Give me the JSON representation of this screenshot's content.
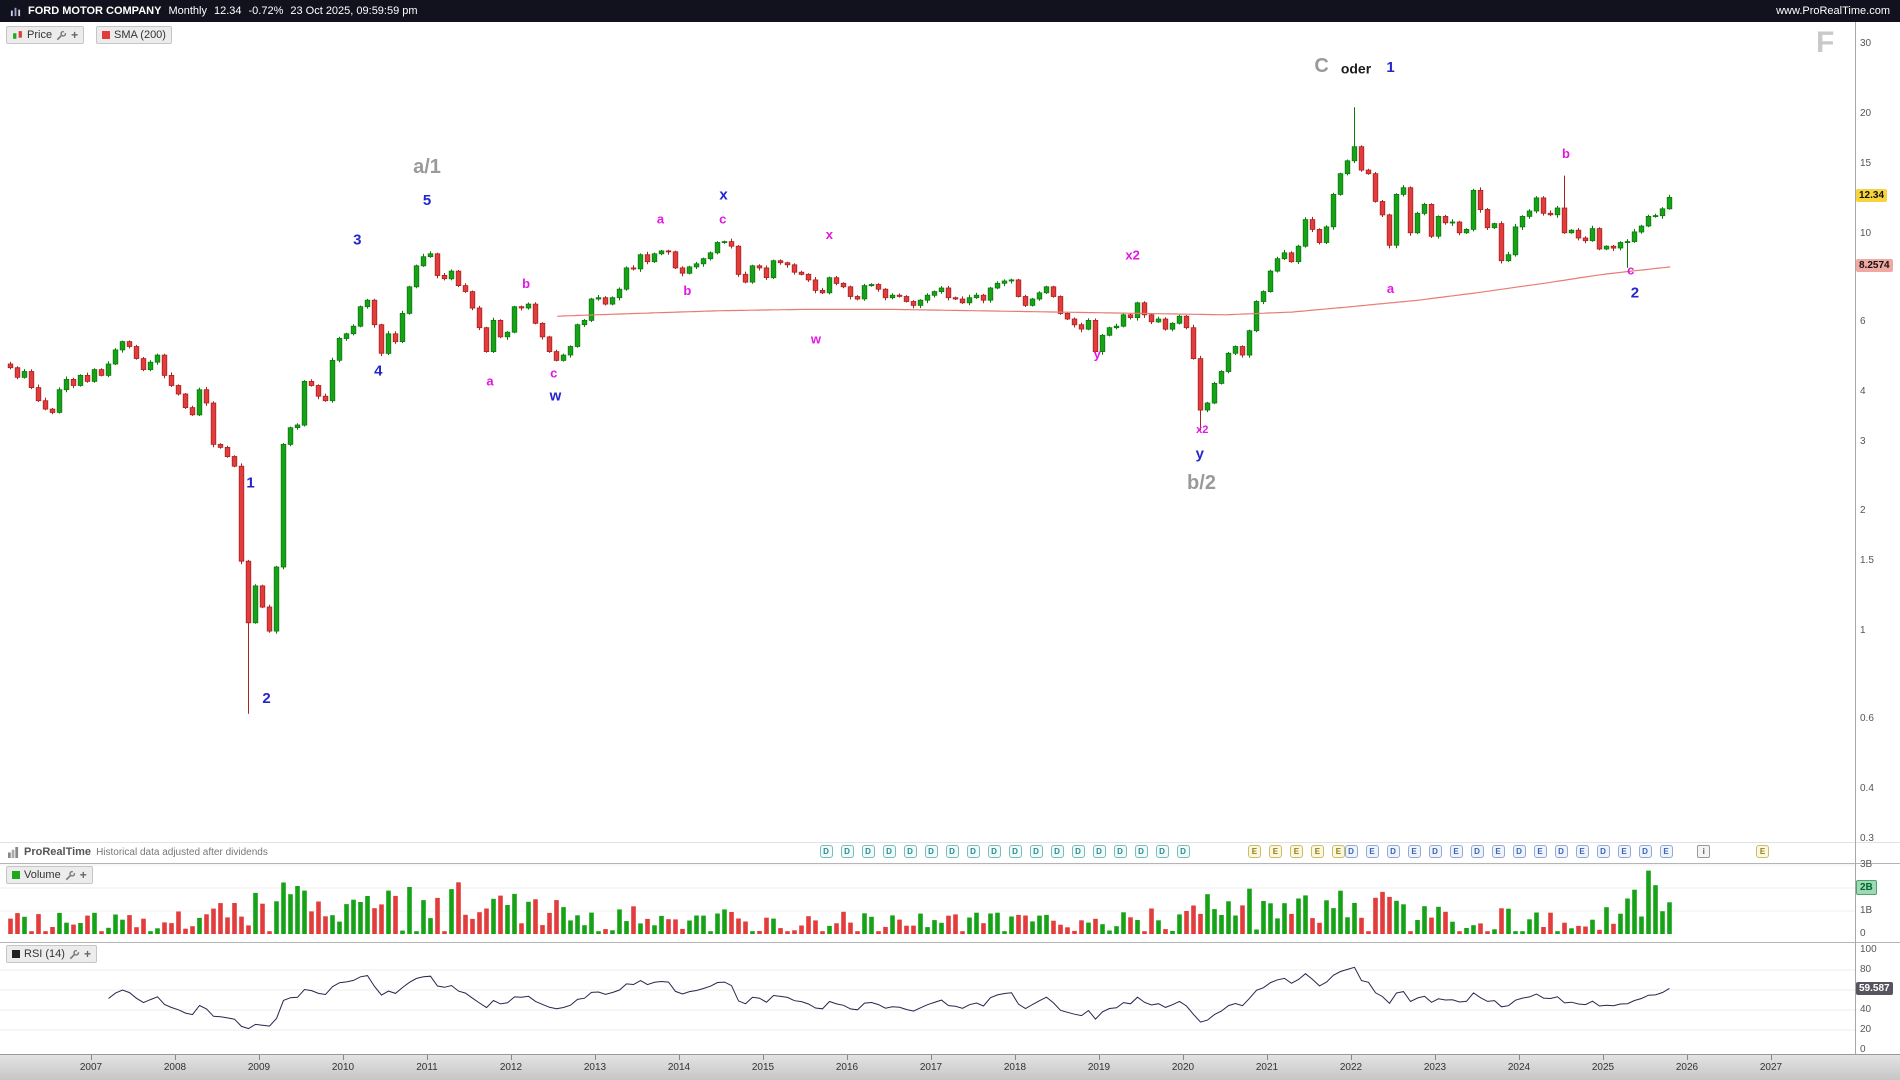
{
  "topbar": {
    "instrument": "FORD MOTOR COMPANY",
    "timeframe": "Monthly",
    "last": "12.34",
    "change": "-0.72%",
    "datetime": "23 Oct 2025, 09:59:59 pm",
    "site": "www.ProRealTime.com"
  },
  "price_panel": {
    "legend": {
      "price_label": "Price",
      "sma_label": "SMA (200)"
    },
    "watermark": "F",
    "axis_labels": [
      "30",
      "20",
      "15",
      "10",
      "6",
      "4",
      "3",
      "2",
      "1.5",
      "1",
      "0.6",
      "0.4",
      "0.3"
    ],
    "last_badge": {
      "value": "12.34",
      "price": 12.34
    },
    "sma_badge": {
      "value": "8.2574",
      "price": 8.2574
    },
    "colors": {
      "up": "#17a317",
      "up_stroke": "#0b7a0b",
      "down": "#e23c3c",
      "down_stroke": "#a82222",
      "sma": "#e87b74"
    },
    "annotations": [
      {
        "t": 2011.0,
        "p": 14.2,
        "text": "a/1",
        "cls": "gray"
      },
      {
        "t": 2011.0,
        "p": 11.8,
        "text": "5",
        "cls": "blue"
      },
      {
        "t": 2010.17,
        "p": 9.4,
        "text": "3",
        "cls": "blue"
      },
      {
        "t": 2010.42,
        "p": 4.4,
        "text": "4",
        "cls": "blue"
      },
      {
        "t": 2008.9,
        "p": 2.3,
        "text": "1",
        "cls": "blue"
      },
      {
        "t": 2009.09,
        "p": 0.66,
        "text": "2",
        "cls": "blue"
      },
      {
        "t": 2011.75,
        "p": 4.15,
        "text": "a",
        "cls": "mag"
      },
      {
        "t": 2012.18,
        "p": 7.3,
        "text": "b",
        "cls": "mag"
      },
      {
        "t": 2012.51,
        "p": 4.35,
        "text": "c",
        "cls": "mag"
      },
      {
        "t": 2012.53,
        "p": 3.8,
        "text": "w",
        "cls": "blue"
      },
      {
        "t": 2013.78,
        "p": 10.6,
        "text": "a",
        "cls": "mag"
      },
      {
        "t": 2014.1,
        "p": 7.0,
        "text": "b",
        "cls": "mag"
      },
      {
        "t": 2014.53,
        "p": 12.2,
        "text": "x",
        "cls": "blue"
      },
      {
        "t": 2014.52,
        "p": 10.6,
        "text": "c",
        "cls": "mag"
      },
      {
        "t": 2015.79,
        "p": 9.7,
        "text": "x",
        "cls": "mag"
      },
      {
        "t": 2015.63,
        "p": 5.3,
        "text": "w",
        "cls": "mag"
      },
      {
        "t": 2019.4,
        "p": 8.6,
        "text": "x2",
        "cls": "mag"
      },
      {
        "t": 2018.98,
        "p": 4.85,
        "text": "y",
        "cls": "mag"
      },
      {
        "t": 2020.23,
        "p": 3.15,
        "text": "x2",
        "cls": "mag-sm"
      },
      {
        "t": 2020.2,
        "p": 2.72,
        "text": "y",
        "cls": "blue"
      },
      {
        "t": 2020.22,
        "p": 2.28,
        "text": "b/2",
        "cls": "gray"
      },
      {
        "t": 2021.65,
        "p": 25.5,
        "text": "C",
        "cls": "gray"
      },
      {
        "t": 2022.06,
        "p": 25.3,
        "text": "oder",
        "cls": "dark"
      },
      {
        "t": 2022.47,
        "p": 25.5,
        "text": "1",
        "cls": "blue"
      },
      {
        "t": 2022.47,
        "p": 7.1,
        "text": "a",
        "cls": "mag"
      },
      {
        "t": 2024.56,
        "p": 15.5,
        "text": "b",
        "cls": "mag"
      },
      {
        "t": 2025.33,
        "p": 7.9,
        "text": "c",
        "cls": "mag"
      },
      {
        "t": 2025.38,
        "p": 6.9,
        "text": "2",
        "cls": "blue"
      }
    ]
  },
  "chart_data": {
    "type": "candlestick",
    "title": "FORD MOTOR COMPANY Monthly",
    "interval": "monthly",
    "price_scale": "log",
    "ylim": [
      0.3,
      30
    ],
    "xrange_years": [
      2006,
      2027
    ],
    "sma_period": 200,
    "rsi_period": 14,
    "last_close": 12.34,
    "sma_last": 8.2574,
    "rsi_last": 59.587,
    "start_year": 2006,
    "start_month": 1,
    "first_open": 4.7,
    "closes": [
      4.6,
      4.35,
      4.5,
      4.1,
      3.8,
      3.62,
      3.55,
      4.05,
      4.3,
      4.15,
      4.4,
      4.25,
      4.55,
      4.4,
      4.7,
      5.1,
      5.35,
      5.2,
      4.85,
      4.55,
      4.75,
      4.95,
      4.4,
      4.15,
      3.95,
      3.65,
      3.5,
      4.05,
      3.75,
      2.95,
      2.9,
      2.75,
      2.6,
      1.5,
      1.05,
      1.3,
      1.15,
      1.0,
      1.45,
      2.95,
      3.25,
      3.3,
      4.25,
      4.15,
      3.9,
      3.8,
      4.8,
      5.45,
      5.6,
      5.85,
      6.55,
      6.8,
      5.9,
      5.0,
      5.6,
      5.35,
      6.3,
      7.35,
      8.3,
      8.75,
      8.9,
      7.85,
      7.7,
      8.05,
      7.4,
      7.15,
      6.5,
      5.8,
      5.05,
      6.05,
      5.5,
      5.65,
      6.55,
      6.5,
      6.65,
      5.95,
      5.5,
      5.05,
      4.8,
      4.95,
      5.2,
      5.9,
      6.05,
      6.85,
      6.9,
      6.65,
      6.9,
      7.25,
      8.2,
      8.15,
      8.85,
      8.5,
      8.9,
      9.05,
      9.0,
      8.2,
      7.95,
      8.25,
      8.4,
      8.65,
      8.95,
      9.5,
      9.55,
      9.3,
      7.9,
      7.55,
      8.3,
      8.2,
      7.75,
      8.55,
      8.45,
      8.35,
      8.0,
      7.9,
      7.65,
      7.2,
      7.1,
      7.75,
      7.5,
      7.35,
      6.95,
      6.85,
      7.4,
      7.45,
      7.25,
      6.9,
      7.0,
      6.95,
      6.75,
      6.6,
      6.8,
      7.0,
      7.15,
      7.3,
      6.9,
      6.85,
      6.7,
      6.9,
      7.0,
      6.8,
      7.3,
      7.5,
      7.6,
      7.65,
      6.95,
      6.6,
      6.85,
      7.1,
      7.35,
      6.95,
      6.3,
      6.1,
      5.9,
      5.75,
      6.05,
      5.05,
      5.55,
      5.8,
      5.85,
      6.25,
      6.15,
      6.7,
      6.25,
      6.0,
      6.1,
      5.75,
      5.95,
      6.2,
      5.8,
      4.85,
      3.6,
      3.75,
      4.2,
      4.5,
      5.0,
      5.2,
      4.95,
      5.7,
      6.75,
      7.15,
      8.05,
      8.65,
      8.95,
      8.5,
      9.3,
      10.85,
      10.25,
      9.5,
      10.4,
      12.55,
      14.15,
      15.25,
      16.55,
      14.45,
      14.15,
      12.05,
      11.15,
      9.35,
      12.55,
      13.05,
      10.05,
      11.25,
      11.85,
      9.85,
      11.05,
      10.65,
      10.7,
      10.05,
      10.25,
      12.85,
      11.5,
      10.35,
      10.6,
      8.55,
      8.85,
      10.4,
      11.05,
      11.4,
      12.3,
      11.25,
      11.15,
      11.6,
      10.05,
      10.2,
      9.75,
      9.6,
      10.3,
      9.15,
      9.3,
      9.2,
      9.5,
      9.55,
      10.1,
      10.45,
      11.05,
      11.1,
      11.55,
      12.34
    ],
    "wick_overrides": {
      "34": {
        "low": 0.62
      },
      "170": {
        "low": 3.2
      },
      "192": {
        "high": 20.8
      },
      "222": {
        "high": 14.0
      },
      "231": {
        "low": 8.2
      }
    },
    "sma200_anchors": [
      [
        2012.55,
        6.2
      ],
      [
        2013.5,
        6.3
      ],
      [
        2014.5,
        6.4
      ],
      [
        2015.5,
        6.45
      ],
      [
        2016.5,
        6.45
      ],
      [
        2017.5,
        6.4
      ],
      [
        2018.5,
        6.35
      ],
      [
        2019.5,
        6.3
      ],
      [
        2020.5,
        6.25
      ],
      [
        2021.3,
        6.35
      ],
      [
        2022.0,
        6.55
      ],
      [
        2022.8,
        6.8
      ],
      [
        2023.5,
        7.1
      ],
      [
        2024.3,
        7.5
      ],
      [
        2025.0,
        7.9
      ],
      [
        2025.82,
        8.2574
      ]
    ],
    "volume_anchors": [
      [
        2006.0,
        0.9
      ],
      [
        2007.0,
        1.0
      ],
      [
        2008.0,
        1.1
      ],
      [
        2008.9,
        1.8
      ],
      [
        2009.3,
        2.5
      ],
      [
        2009.8,
        1.9
      ],
      [
        2010.3,
        2.8
      ],
      [
        2010.8,
        2.2
      ],
      [
        2011.3,
        2.4
      ],
      [
        2012.0,
        1.8
      ],
      [
        2013.0,
        1.3
      ],
      [
        2014.0,
        1.15
      ],
      [
        2015.0,
        1.0
      ],
      [
        2016.0,
        1.0
      ],
      [
        2017.0,
        0.9
      ],
      [
        2018.0,
        0.95
      ],
      [
        2019.0,
        0.85
      ],
      [
        2020.1,
        1.4
      ],
      [
        2020.4,
        2.3
      ],
      [
        2021.0,
        2.0
      ],
      [
        2021.6,
        1.8
      ],
      [
        2022.1,
        2.1
      ],
      [
        2022.8,
        1.5
      ],
      [
        2023.5,
        1.25
      ],
      [
        2024.3,
        1.15
      ],
      [
        2024.8,
        1.4
      ],
      [
        2025.2,
        1.2
      ],
      [
        2025.55,
        3.0
      ],
      [
        2025.8,
        2.3
      ]
    ]
  },
  "footer_strip": {
    "brand": "ProRealTime",
    "note": "Historical data adjusted after dividends",
    "markers": {
      "dividends_teal": [
        2015.75,
        2016.0,
        2016.25,
        2016.5,
        2016.75,
        2017.0,
        2017.25,
        2017.5,
        2017.75,
        2018.0,
        2018.25,
        2018.5,
        2018.75,
        2019.0,
        2019.25,
        2019.5,
        2019.75,
        2020.0
      ],
      "earnings_yellow": [
        2020.85,
        2021.1,
        2021.35,
        2021.6,
        2021.85
      ],
      "mixed_blue": [
        2022.0,
        2022.25,
        2022.5,
        2022.75,
        2023.0,
        2023.25,
        2023.5,
        2023.75,
        2024.0,
        2024.25,
        2024.5,
        2024.75,
        2025.0,
        2025.25,
        2025.5,
        2025.75
      ],
      "info_at": 2026.2,
      "lone_e_at": 2026.9
    }
  },
  "volume_panel": {
    "legend": "Volume",
    "axis_labels": [
      {
        "label": "3B",
        "v": 3
      },
      {
        "label": "1B",
        "v": 1
      },
      {
        "label": "0",
        "v": 0
      }
    ],
    "badge": {
      "label": "2B",
      "v": 2
    }
  },
  "rsi_panel": {
    "legend": "RSI (14)",
    "axis_labels": [
      {
        "label": "100",
        "v": 100
      },
      {
        "label": "80",
        "v": 80
      },
      {
        "label": "40",
        "v": 40
      },
      {
        "label": "20",
        "v": 20
      },
      {
        "label": "0",
        "v": 0
      }
    ],
    "badge": {
      "label": "59.587",
      "v": 59.587
    }
  },
  "time_axis": {
    "years": [
      "2007",
      "2008",
      "2009",
      "2010",
      "2011",
      "2012",
      "2013",
      "2014",
      "2015",
      "2016",
      "2017",
      "2018",
      "2019",
      "2020",
      "2021",
      "2022",
      "2023",
      "2024",
      "2025",
      "2026",
      "2027"
    ]
  }
}
